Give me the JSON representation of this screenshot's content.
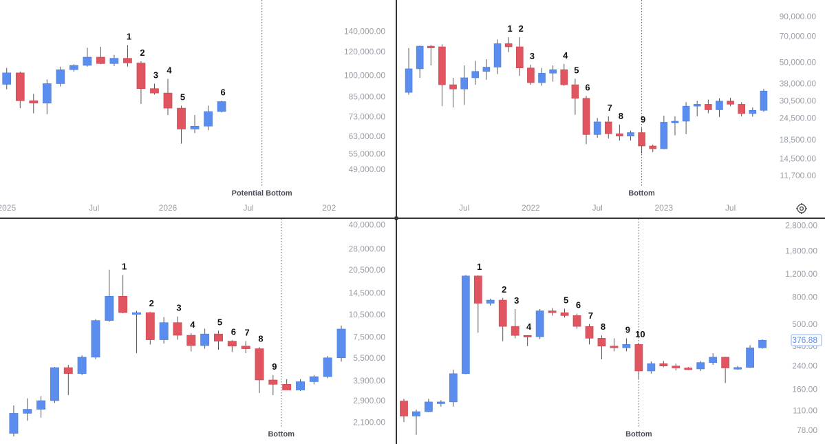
{
  "colors": {
    "up": "#5b8def",
    "down": "#e0555f",
    "wick": "#555555",
    "divider": "#333333",
    "tick_text": "#9a9ea6",
    "price_box_border": "#8fb0ea",
    "price_box_text": "#5b8def"
  },
  "settings_icon": "gear-icon",
  "chart_data": [
    {
      "type": "candlestick",
      "panel": "top-left",
      "title": "",
      "scale": "log",
      "ylim": [
        45000,
        160000
      ],
      "y_ticks": [
        "140,000.00",
        "120,000.00",
        "100,000.00",
        "85,000.00",
        "73,000.00",
        "63,000.00",
        "55,000.00",
        "49,000.00"
      ],
      "y_tick_values": [
        140000,
        120000,
        100000,
        85000,
        73000,
        63000,
        55000,
        49000
      ],
      "x_ticks": [
        {
          "label": "2025",
          "i": 0
        },
        {
          "label": "Jul",
          "i": 6.5
        },
        {
          "label": "2026",
          "i": 12
        },
        {
          "label": "Jul",
          "i": 18
        },
        {
          "label": "202",
          "i": 24
        }
      ],
      "vline": {
        "label": "Potential Bottom",
        "i": 19
      },
      "x_count": 25,
      "candles": [
        {
          "o": 93500,
          "h": 106000,
          "l": 90000,
          "c": 102000
        },
        {
          "o": 102000,
          "h": 103000,
          "l": 78000,
          "c": 82500
        },
        {
          "o": 82500,
          "h": 87000,
          "l": 75000,
          "c": 81000
        },
        {
          "o": 81000,
          "h": 97000,
          "l": 74500,
          "c": 94000
        },
        {
          "o": 94000,
          "h": 107000,
          "l": 92000,
          "c": 104500
        },
        {
          "o": 104500,
          "h": 109000,
          "l": 103000,
          "c": 108000
        },
        {
          "o": 108000,
          "h": 123500,
          "l": 107000,
          "c": 115000
        },
        {
          "o": 115000,
          "h": 124500,
          "l": 109000,
          "c": 109500
        },
        {
          "o": 109500,
          "h": 117000,
          "l": 107500,
          "c": 114000
        },
        {
          "o": 114000,
          "h": 126000,
          "l": 107000,
          "c": 110000
        },
        {
          "o": 110000,
          "h": 111500,
          "l": 80500,
          "c": 90500
        },
        {
          "o": 90500,
          "h": 94000,
          "l": 86500,
          "c": 87500
        },
        {
          "o": 87500,
          "h": 97500,
          "l": 74000,
          "c": 78000
        },
        {
          "o": 78000,
          "h": 79500,
          "l": 59500,
          "c": 66500
        },
        {
          "o": 66500,
          "h": 74000,
          "l": 64500,
          "c": 68000
        },
        {
          "o": 68000,
          "h": 79500,
          "l": 66000,
          "c": 76000
        },
        {
          "o": 76000,
          "h": 82500,
          "l": 75500,
          "c": 82000
        }
      ],
      "labels": [
        {
          "text": "1",
          "i": 9
        },
        {
          "text": "2",
          "i": 10
        },
        {
          "text": "3",
          "i": 11
        },
        {
          "text": "4",
          "i": 12
        },
        {
          "text": "5",
          "i": 13
        },
        {
          "text": "6",
          "i": 16
        }
      ]
    },
    {
      "type": "candlestick",
      "panel": "top-right",
      "title": "",
      "scale": "log",
      "ylim": [
        11000,
        100000
      ],
      "y_ticks": [
        "90,000.00",
        "70,000.00",
        "50,000.00",
        "38,000.00",
        "30,500.00",
        "24,500.00",
        "18,500.00",
        "14,500.00",
        "11,700.00"
      ],
      "y_tick_values": [
        90000,
        70000,
        50000,
        38000,
        30500,
        24500,
        18500,
        14500,
        11700
      ],
      "x_ticks": [
        {
          "label": "Jul",
          "i": 5
        },
        {
          "label": "2022",
          "i": 11
        },
        {
          "label": "Jul",
          "i": 17
        },
        {
          "label": "2023",
          "i": 23
        },
        {
          "label": "Jul",
          "i": 29
        }
      ],
      "vline": {
        "label": "Bottom",
        "i": 21
      },
      "x_count": 33,
      "candles": [
        {
          "o": 34000,
          "h": 60000,
          "l": 33000,
          "c": 46000
        },
        {
          "o": 46000,
          "h": 62000,
          "l": 41000,
          "c": 61500
        },
        {
          "o": 61500,
          "h": 62500,
          "l": 48000,
          "c": 61000
        },
        {
          "o": 61000,
          "h": 63000,
          "l": 28500,
          "c": 37500
        },
        {
          "o": 37500,
          "h": 41000,
          "l": 28000,
          "c": 35500
        },
        {
          "o": 35500,
          "h": 48000,
          "l": 29000,
          "c": 41000
        },
        {
          "o": 41000,
          "h": 51000,
          "l": 37500,
          "c": 44500
        },
        {
          "o": 44500,
          "h": 52000,
          "l": 40000,
          "c": 47000
        },
        {
          "o": 47000,
          "h": 67000,
          "l": 43000,
          "c": 63500
        },
        {
          "o": 63500,
          "h": 69000,
          "l": 57000,
          "c": 61000
        },
        {
          "o": 61000,
          "h": 69000,
          "l": 42000,
          "c": 46500
        },
        {
          "o": 46500,
          "h": 48500,
          "l": 37500,
          "c": 38500
        },
        {
          "o": 38500,
          "h": 46500,
          "l": 37000,
          "c": 43500
        },
        {
          "o": 43500,
          "h": 48000,
          "l": 39000,
          "c": 45500
        },
        {
          "o": 45500,
          "h": 49000,
          "l": 37000,
          "c": 37500
        },
        {
          "o": 37500,
          "h": 40500,
          "l": 25500,
          "c": 31500
        },
        {
          "o": 31500,
          "h": 32500,
          "l": 17500,
          "c": 19800
        },
        {
          "o": 19800,
          "h": 24500,
          "l": 19000,
          "c": 23300
        },
        {
          "o": 23300,
          "h": 25000,
          "l": 18800,
          "c": 20000
        },
        {
          "o": 20000,
          "h": 22500,
          "l": 18300,
          "c": 19400
        },
        {
          "o": 19400,
          "h": 20800,
          "l": 18300,
          "c": 20300
        },
        {
          "o": 20300,
          "h": 21500,
          "l": 15500,
          "c": 17100
        },
        {
          "o": 17100,
          "h": 17400,
          "l": 15800,
          "c": 16500
        },
        {
          "o": 16500,
          "h": 25200,
          "l": 16400,
          "c": 23200
        },
        {
          "o": 23200,
          "h": 25000,
          "l": 19600,
          "c": 23500
        },
        {
          "o": 23500,
          "h": 30000,
          "l": 19900,
          "c": 28500
        },
        {
          "o": 28500,
          "h": 30500,
          "l": 25000,
          "c": 29200
        },
        {
          "o": 29200,
          "h": 31000,
          "l": 26000,
          "c": 27200
        },
        {
          "o": 27200,
          "h": 31500,
          "l": 24800,
          "c": 30400
        },
        {
          "o": 30400,
          "h": 31700,
          "l": 28500,
          "c": 29200
        },
        {
          "o": 29200,
          "h": 30000,
          "l": 25000,
          "c": 25900
        },
        {
          "o": 25900,
          "h": 28000,
          "l": 24900,
          "c": 27000
        },
        {
          "o": 27000,
          "h": 35500,
          "l": 26500,
          "c": 34600
        }
      ],
      "labels": [
        {
          "text": "1",
          "i": 9
        },
        {
          "text": "2",
          "i": 10
        },
        {
          "text": "3",
          "i": 11
        },
        {
          "text": "4",
          "i": 14
        },
        {
          "text": "5",
          "i": 15
        },
        {
          "text": "6",
          "i": 16
        },
        {
          "text": "7",
          "i": 18
        },
        {
          "text": "8",
          "i": 19
        },
        {
          "text": "9",
          "i": 21
        }
      ]
    },
    {
      "type": "candlestick",
      "panel": "bottom-left",
      "title": "",
      "scale": "log",
      "ylim": [
        1700,
        42000
      ],
      "y_ticks": [
        "40,000.00",
        "28,000.00",
        "20,500.00",
        "14,500.00",
        "10,500.00",
        "7,500.00",
        "5,500.00",
        "3,900.00",
        "2,900.00",
        "2,100.00"
      ],
      "y_tick_values": [
        40000,
        28000,
        20500,
        14500,
        10500,
        7500,
        5500,
        3900,
        2900,
        2100
      ],
      "x_ticks": [],
      "vline": {
        "label": "Bottom",
        "i": 19.6
      },
      "x_count": 24.7,
      "candles": [
        {
          "o": 1780,
          "h": 2700,
          "l": 1700,
          "c": 2400
        },
        {
          "o": 2400,
          "h": 3000,
          "l": 2150,
          "c": 2550
        },
        {
          "o": 2550,
          "h": 3100,
          "l": 2250,
          "c": 2900
        },
        {
          "o": 2900,
          "h": 4800,
          "l": 2800,
          "c": 4750
        },
        {
          "o": 4750,
          "h": 4950,
          "l": 3150,
          "c": 4350
        },
        {
          "o": 4350,
          "h": 5700,
          "l": 4250,
          "c": 5550
        },
        {
          "o": 5550,
          "h": 9800,
          "l": 5400,
          "c": 9600
        },
        {
          "o": 9600,
          "h": 20500,
          "l": 9400,
          "c": 13800
        },
        {
          "o": 13800,
          "h": 18900,
          "l": 10700,
          "c": 10800
        },
        {
          "o": 10800,
          "h": 11100,
          "l": 5900,
          "c": 10800
        },
        {
          "o": 10800,
          "h": 10900,
          "l": 6700,
          "c": 7200
        },
        {
          "o": 7200,
          "h": 10100,
          "l": 6800,
          "c": 9300
        },
        {
          "o": 9300,
          "h": 10200,
          "l": 7200,
          "c": 7700
        },
        {
          "o": 7700,
          "h": 7950,
          "l": 6050,
          "c": 6600
        },
        {
          "o": 6600,
          "h": 8500,
          "l": 6300,
          "c": 7850
        },
        {
          "o": 7850,
          "h": 8250,
          "l": 6200,
          "c": 7050
        },
        {
          "o": 7050,
          "h": 7150,
          "l": 6000,
          "c": 6550
        },
        {
          "o": 6550,
          "h": 7050,
          "l": 5900,
          "c": 6300
        },
        {
          "o": 6300,
          "h": 6450,
          "l": 3250,
          "c": 3950
        },
        {
          "o": 3950,
          "h": 4250,
          "l": 3150,
          "c": 3700
        },
        {
          "o": 3700,
          "h": 4000,
          "l": 3400,
          "c": 3400
        },
        {
          "o": 3400,
          "h": 4000,
          "l": 3350,
          "c": 3850
        },
        {
          "o": 3850,
          "h": 4250,
          "l": 3700,
          "c": 4150
        },
        {
          "o": 4150,
          "h": 5650,
          "l": 4050,
          "c": 5500
        },
        {
          "o": 5500,
          "h": 8900,
          "l": 5200,
          "c": 8450
        }
      ],
      "labels": [
        {
          "text": "1",
          "i": 8
        },
        {
          "text": "2",
          "i": 10
        },
        {
          "text": "3",
          "i": 12
        },
        {
          "text": "4",
          "i": 13
        },
        {
          "text": "5",
          "i": 15
        },
        {
          "text": "6",
          "i": 16
        },
        {
          "text": "7",
          "i": 17
        },
        {
          "text": "8",
          "i": 18
        },
        {
          "text": "9",
          "i": 19
        }
      ]
    },
    {
      "type": "candlestick",
      "panel": "bottom-right",
      "title": "",
      "scale": "log",
      "ylim": [
        70,
        3000
      ],
      "y_ticks": [
        "2,800.00",
        "1,800.00",
        "1,200.00",
        "800.00",
        "500.00",
        "340.00",
        "240.00",
        "160.00",
        "110.00",
        "78.00"
      ],
      "y_tick_values": [
        2800,
        1800,
        1200,
        800,
        500,
        340,
        240,
        160,
        110,
        78
      ],
      "x_ticks": [],
      "vline": {
        "label": "Bottom",
        "i": 19
      },
      "x_count": 31,
      "current_price": "376.88",
      "current_price_value": 376.88,
      "candles": [
        {
          "o": 130,
          "h": 135,
          "l": 90,
          "c": 100
        },
        {
          "o": 100,
          "h": 112,
          "l": 72,
          "c": 108
        },
        {
          "o": 108,
          "h": 135,
          "l": 107,
          "c": 128
        },
        {
          "o": 128,
          "h": 132,
          "l": 118,
          "c": 128
        },
        {
          "o": 128,
          "h": 225,
          "l": 118,
          "c": 210
        },
        {
          "o": 210,
          "h": 1180,
          "l": 208,
          "c": 1160
        },
        {
          "o": 1160,
          "h": 1170,
          "l": 430,
          "c": 720
        },
        {
          "o": 720,
          "h": 780,
          "l": 690,
          "c": 760
        },
        {
          "o": 760,
          "h": 790,
          "l": 370,
          "c": 480
        },
        {
          "o": 480,
          "h": 650,
          "l": 390,
          "c": 410
        },
        {
          "o": 410,
          "h": 410,
          "l": 340,
          "c": 400
        },
        {
          "o": 400,
          "h": 650,
          "l": 385,
          "c": 630
        },
        {
          "o": 630,
          "h": 660,
          "l": 580,
          "c": 610
        },
        {
          "o": 610,
          "h": 655,
          "l": 560,
          "c": 580
        },
        {
          "o": 580,
          "h": 600,
          "l": 460,
          "c": 480
        },
        {
          "o": 480,
          "h": 500,
          "l": 350,
          "c": 390
        },
        {
          "o": 390,
          "h": 410,
          "l": 270,
          "c": 340
        },
        {
          "o": 340,
          "h": 390,
          "l": 310,
          "c": 330
        },
        {
          "o": 330,
          "h": 390,
          "l": 310,
          "c": 350
        },
        {
          "o": 350,
          "h": 360,
          "l": 190,
          "c": 220
        },
        {
          "o": 220,
          "h": 260,
          "l": 210,
          "c": 250
        },
        {
          "o": 250,
          "h": 262,
          "l": 235,
          "c": 240
        },
        {
          "o": 240,
          "h": 250,
          "l": 222,
          "c": 232
        },
        {
          "o": 232,
          "h": 236,
          "l": 224,
          "c": 228
        },
        {
          "o": 228,
          "h": 262,
          "l": 220,
          "c": 255
        },
        {
          "o": 255,
          "h": 300,
          "l": 245,
          "c": 280
        },
        {
          "o": 280,
          "h": 282,
          "l": 178,
          "c": 232
        },
        {
          "o": 232,
          "h": 240,
          "l": 225,
          "c": 234
        },
        {
          "o": 234,
          "h": 345,
          "l": 232,
          "c": 330
        },
        {
          "o": 330,
          "h": 382,
          "l": 325,
          "c": 376.88
        }
      ],
      "labels": [
        {
          "text": "1",
          "i": 6
        },
        {
          "text": "2",
          "i": 8
        },
        {
          "text": "3",
          "i": 9
        },
        {
          "text": "4",
          "i": 10
        },
        {
          "text": "5",
          "i": 13
        },
        {
          "text": "6",
          "i": 14
        },
        {
          "text": "7",
          "i": 15
        },
        {
          "text": "8",
          "i": 16
        },
        {
          "text": "9",
          "i": 18
        },
        {
          "text": "10",
          "i": 19
        }
      ]
    }
  ]
}
